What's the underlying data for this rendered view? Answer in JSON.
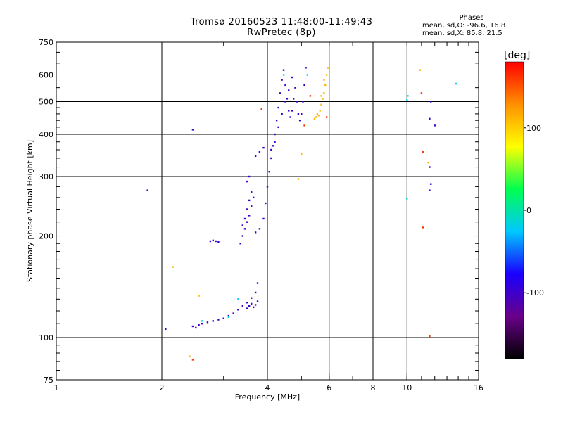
{
  "header": {
    "title": "Tromsø 20160523 11:48:00-11:49:43",
    "subtitle": "RwPretec (8p)"
  },
  "phase_stats": {
    "heading": "Phases",
    "o_line": "mean, sd,O: -96.6, 16.8",
    "x_line": "mean, sd,X:  85.8, 21.5"
  },
  "chart_data": {
    "type": "scatter",
    "xlabel": "Frequency [MHz]",
    "ylabel": "Stationary phase Virtual Height [km]",
    "xscale": "log",
    "yscale": "log",
    "xlim": [
      1,
      16
    ],
    "ylim": [
      75,
      750
    ],
    "x_ticks": [
      1,
      2,
      4,
      6,
      8,
      10,
      16
    ],
    "x_tick_labels": [
      "1",
      "2",
      "4",
      "6",
      "8",
      "10",
      "16"
    ],
    "y_ticks": [
      75,
      100,
      200,
      300,
      400,
      500,
      600,
      750
    ],
    "y_tick_labels": [
      "75",
      "100",
      "200",
      "300",
      "400",
      "500",
      "600",
      "750"
    ],
    "grid": true,
    "colorbar": {
      "label": "[deg]",
      "range": [
        -180,
        180
      ],
      "ticks": [
        100,
        0,
        -100
      ],
      "tick_labels": [
        "100",
        "0",
        "-100"
      ],
      "colormap": [
        "#000000",
        "#6a008a",
        "#1a00ff",
        "#00c8ff",
        "#00ff50",
        "#ffff00",
        "#ff9000",
        "#ff0000"
      ]
    },
    "series": [
      {
        "color_hint": "blue",
        "phase": -100,
        "points": [
          [
            2.45,
            108
          ],
          [
            2.5,
            107
          ],
          [
            2.55,
            109
          ],
          [
            2.6,
            110
          ],
          [
            2.7,
            111
          ],
          [
            2.8,
            112
          ],
          [
            2.9,
            113
          ],
          [
            3.0,
            114
          ],
          [
            3.1,
            116
          ],
          [
            3.2,
            118
          ],
          [
            3.3,
            121
          ],
          [
            3.4,
            124
          ],
          [
            3.5,
            127
          ],
          [
            3.6,
            131
          ],
          [
            3.7,
            136
          ],
          [
            3.75,
            145
          ],
          [
            3.5,
            122
          ],
          [
            3.55,
            124
          ],
          [
            3.6,
            126
          ],
          [
            3.65,
            123
          ],
          [
            3.7,
            125
          ],
          [
            3.75,
            128
          ],
          [
            2.75,
            193
          ],
          [
            2.8,
            194
          ],
          [
            2.85,
            193
          ],
          [
            2.9,
            192
          ],
          [
            3.35,
            190
          ],
          [
            3.4,
            200
          ],
          [
            3.45,
            210
          ],
          [
            3.5,
            220
          ],
          [
            3.55,
            230
          ],
          [
            3.6,
            245
          ],
          [
            3.65,
            260
          ],
          [
            3.4,
            215
          ],
          [
            3.45,
            225
          ],
          [
            3.5,
            240
          ],
          [
            3.55,
            255
          ],
          [
            3.6,
            270
          ],
          [
            3.5,
            290
          ],
          [
            3.55,
            300
          ],
          [
            3.7,
            205
          ],
          [
            3.8,
            210
          ],
          [
            3.9,
            225
          ],
          [
            3.95,
            250
          ],
          [
            4.0,
            280
          ],
          [
            4.05,
            310
          ],
          [
            4.1,
            340
          ],
          [
            4.15,
            370
          ],
          [
            4.2,
            400
          ],
          [
            4.25,
            440
          ],
          [
            4.3,
            480
          ],
          [
            4.35,
            530
          ],
          [
            4.4,
            580
          ],
          [
            4.45,
            620
          ],
          [
            4.5,
            560
          ],
          [
            4.55,
            510
          ],
          [
            4.6,
            470
          ],
          [
            4.65,
            450
          ],
          [
            4.7,
            470
          ],
          [
            4.75,
            510
          ],
          [
            4.8,
            550
          ],
          [
            4.85,
            500
          ],
          [
            4.9,
            460
          ],
          [
            4.95,
            440
          ],
          [
            5.0,
            460
          ],
          [
            5.05,
            500
          ],
          [
            5.1,
            560
          ],
          [
            5.15,
            630
          ],
          [
            4.3,
            420
          ],
          [
            4.4,
            460
          ],
          [
            4.5,
            500
          ],
          [
            4.6,
            540
          ],
          [
            4.7,
            590
          ],
          [
            4.2,
            380
          ],
          [
            4.1,
            360
          ],
          [
            3.8,
            355
          ],
          [
            3.7,
            345
          ],
          [
            3.9,
            365
          ],
          [
            2.05,
            106
          ],
          [
            1.82,
            273
          ],
          [
            2.45,
            413
          ],
          [
            11.6,
            445
          ],
          [
            12.0,
            425
          ],
          [
            11.6,
            320
          ],
          [
            11.7,
            285
          ],
          [
            11.6,
            273
          ],
          [
            11.7,
            500
          ]
        ]
      },
      {
        "color_hint": "cyan",
        "phase": -20,
        "points": [
          [
            2.6,
            112
          ],
          [
            3.1,
            115
          ],
          [
            3.3,
            130
          ],
          [
            4.45,
            600
          ],
          [
            5.2,
            600
          ],
          [
            10.0,
            505
          ],
          [
            10.05,
            520
          ],
          [
            10.0,
            258
          ],
          [
            13.8,
            565
          ]
        ]
      },
      {
        "color_hint": "yellow",
        "phase": 110,
        "points": [
          [
            5.6,
            455
          ],
          [
            5.65,
            470
          ],
          [
            5.7,
            490
          ],
          [
            5.75,
            510
          ],
          [
            5.8,
            530
          ],
          [
            5.85,
            560
          ],
          [
            5.9,
            600
          ],
          [
            5.95,
            630
          ],
          [
            5.5,
            450
          ],
          [
            5.45,
            445
          ],
          [
            5.55,
            460
          ],
          [
            5.7,
            520
          ],
          [
            5.8,
            580
          ],
          [
            2.15,
            162
          ],
          [
            2.55,
            133
          ],
          [
            5.0,
            350
          ],
          [
            4.9,
            295
          ],
          [
            10.9,
            620
          ],
          [
            11.5,
            330
          ],
          [
            2.4,
            88
          ]
        ]
      },
      {
        "color_hint": "orange-red",
        "phase": 160,
        "points": [
          [
            5.3,
            520
          ],
          [
            5.1,
            425
          ],
          [
            11.0,
            530
          ],
          [
            11.1,
            355
          ],
          [
            11.1,
            212
          ],
          [
            11.6,
            101
          ],
          [
            2.45,
            86
          ],
          [
            3.85,
            475
          ],
          [
            5.9,
            450
          ]
        ]
      }
    ]
  }
}
